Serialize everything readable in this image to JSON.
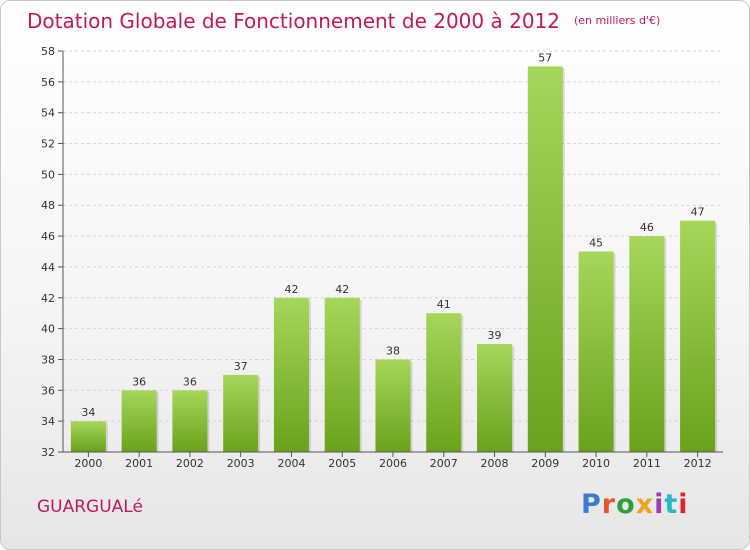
{
  "header": {
    "title": "Dotation Globale de Fonctionnement de 2000 à 2012",
    "unit": "(en milliers d'€)"
  },
  "commune": "GUARGUALé",
  "logo": {
    "text": "Proxiti"
  },
  "colors": {
    "bar_light": "#a6d65a",
    "bar_dark": "#6aa21c",
    "title": "#c2185b",
    "grid": "#d4d4d4"
  },
  "chart_data": {
    "type": "bar",
    "title": "Dotation Globale de Fonctionnement de 2000 à 2012",
    "subtitle": "(en milliers d'€)",
    "xlabel": "",
    "ylabel": "",
    "categories": [
      "2000",
      "2001",
      "2002",
      "2003",
      "2004",
      "2005",
      "2006",
      "2007",
      "2008",
      "2009",
      "2010",
      "2011",
      "2012"
    ],
    "values": [
      34,
      36,
      36,
      37,
      42,
      42,
      38,
      41,
      39,
      57,
      45,
      46,
      47
    ],
    "ylim": [
      32,
      58
    ],
    "yticks": [
      32,
      34,
      36,
      38,
      40,
      42,
      44,
      46,
      48,
      50,
      52,
      54,
      56,
      58
    ],
    "grid": true,
    "legend": "none"
  }
}
